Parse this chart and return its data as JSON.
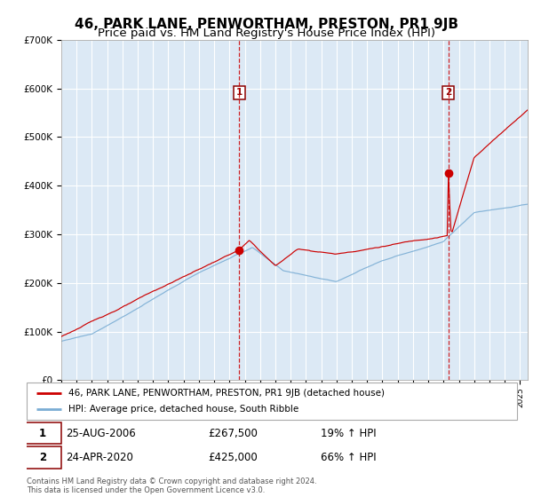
{
  "title": "46, PARK LANE, PENWORTHAM, PRESTON, PR1 9JB",
  "subtitle": "Price paid vs. HM Land Registry's House Price Index (HPI)",
  "title_fontsize": 11,
  "subtitle_fontsize": 9.5,
  "plot_bg_color": "#dce9f5",
  "grid_color": "#ffffff",
  "sale1_date_num": 2006.646,
  "sale1_price": 267500,
  "sale1_label": "1",
  "sale2_date_num": 2020.31,
  "sale2_price": 425000,
  "sale2_label": "2",
  "legend_line1": "46, PARK LANE, PENWORTHAM, PRESTON, PR1 9JB (detached house)",
  "legend_line2": "HPI: Average price, detached house, South Ribble",
  "annot1_date": "25-AUG-2006",
  "annot1_price": "£267,500",
  "annot1_hpi": "19% ↑ HPI",
  "annot2_date": "24-APR-2020",
  "annot2_price": "£425,000",
  "annot2_hpi": "66% ↑ HPI",
  "footer": "Contains HM Land Registry data © Crown copyright and database right 2024.\nThis data is licensed under the Open Government Licence v3.0.",
  "red_line_color": "#cc0000",
  "blue_line_color": "#7aadd4",
  "dot_color": "#cc0000",
  "dashed_line_color": "#cc0000",
  "ylim_min": 0,
  "ylim_max": 700000,
  "xmin": 1995,
  "xmax": 2025.5
}
